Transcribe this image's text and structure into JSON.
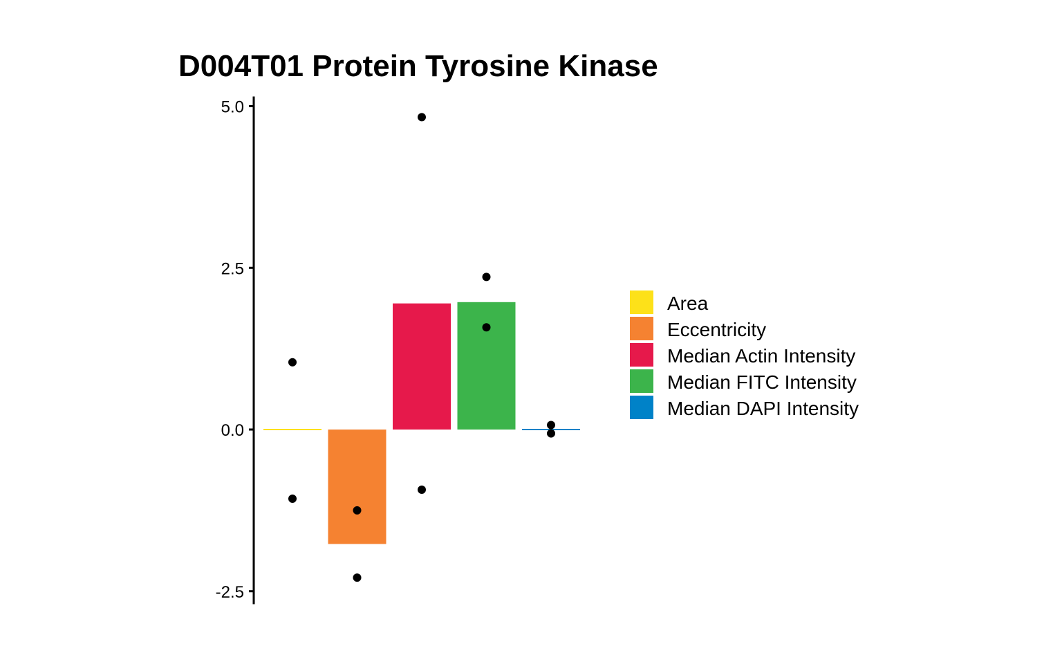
{
  "chart_data": {
    "type": "bar",
    "title": "D004T01 Protein Tyrosine Kinase",
    "xlabel": "",
    "ylabel": "",
    "ylim": [
      -2.7,
      5.15
    ],
    "yticks": [
      "5.0",
      "2.5",
      "0.0",
      "-2.5"
    ],
    "ytick_values": [
      5.0,
      2.5,
      0.0,
      -2.5
    ],
    "legend_position": "right",
    "grid": false,
    "series": [
      {
        "name": "Area",
        "color": "#FDE119",
        "value": 0.0,
        "points": [
          1.04,
          -1.07
        ]
      },
      {
        "name": "Eccentricity",
        "color": "#F58231",
        "value": -1.77,
        "points": [
          -1.25,
          -2.29
        ]
      },
      {
        "name": "Median Actin Intensity",
        "color": "#E6194B",
        "value": 1.95,
        "points": [
          4.83,
          -0.93
        ]
      },
      {
        "name": "Median FITC Intensity",
        "color": "#3CB44B",
        "value": 1.97,
        "points": [
          2.36,
          1.58
        ]
      },
      {
        "name": "Median DAPI Intensity",
        "color": "#0082C8",
        "value": 0.0,
        "points": [
          0.07,
          -0.06
        ]
      }
    ]
  }
}
